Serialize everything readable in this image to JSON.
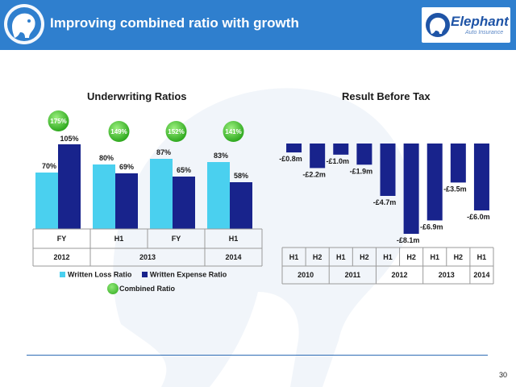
{
  "header": {
    "title": "Improving combined ratio with growth",
    "logo_name": "Elephant",
    "logo_sub": "Auto Insurance"
  },
  "colors": {
    "header_bg": "#2f7fce",
    "loss_ratio": "#4ad0ef",
    "expense_ratio": "#18238c",
    "combined_ratio": "#3cbf29",
    "result_bar": "#18238c"
  },
  "chart_data": [
    {
      "type": "bar",
      "title": "Underwriting Ratios",
      "categories": [
        "FY",
        "H1",
        "FY",
        "H1"
      ],
      "category_groups": [
        {
          "label": "2012",
          "span": 1
        },
        {
          "label": "2013",
          "span": 2
        },
        {
          "label": "2014",
          "span": 1
        }
      ],
      "series": [
        {
          "name": "Written Loss Ratio",
          "values": [
            70,
            80,
            87,
            83
          ],
          "labels": [
            "70%",
            "80%",
            "87%",
            "83%"
          ]
        },
        {
          "name": "Written Expense Ratio",
          "values": [
            105,
            69,
            65,
            58
          ],
          "labels": [
            "105%",
            "69%",
            "65%",
            "58%"
          ]
        }
      ],
      "combined_ratio": {
        "name": "Combined Ratio",
        "values": [
          175,
          149,
          152,
          141
        ],
        "labels": [
          "175%",
          "149%",
          "152%",
          "141%"
        ]
      },
      "ylim": [
        0,
        120
      ],
      "legend": "bottom",
      "grid": false
    },
    {
      "type": "bar",
      "title": "Result Before Tax",
      "categories": [
        "H1",
        "H2",
        "H1",
        "H2",
        "H1",
        "H2",
        "H1",
        "H2",
        "H1"
      ],
      "category_groups": [
        {
          "label": "2010",
          "span": 2
        },
        {
          "label": "2011",
          "span": 2
        },
        {
          "label": "2012",
          "span": 2
        },
        {
          "label": "2013",
          "span": 2
        },
        {
          "label": "2014",
          "span": 1
        }
      ],
      "values": [
        -0.8,
        -2.2,
        -1.0,
        -1.9,
        -4.7,
        -8.1,
        -6.9,
        -3.5,
        -6.0
      ],
      "labels": [
        "-£0.8m",
        "-£2.2m",
        "-£1.0m",
        "-£1.9m",
        "-£4.7m",
        "-£8.1m",
        "-£6.9m",
        "-£3.5m",
        "-£6.0m"
      ],
      "ylim": [
        -8.1,
        0
      ],
      "grid": false
    }
  ],
  "footer": {
    "page_number": "30"
  }
}
